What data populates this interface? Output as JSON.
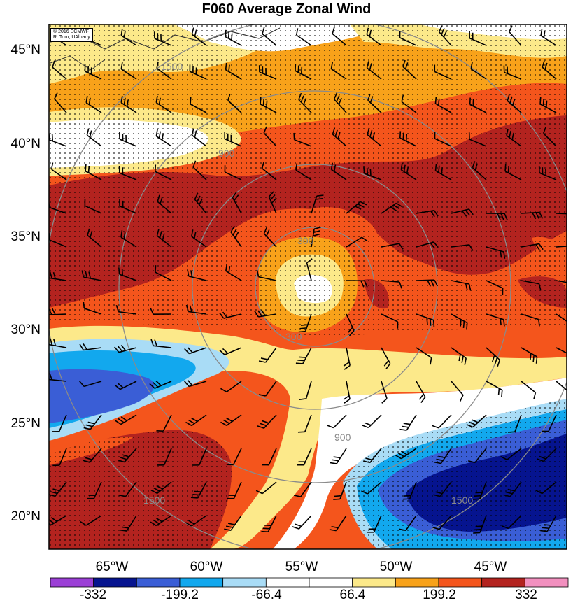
{
  "title": "F060 Average Zonal Wind",
  "credit": {
    "line1": "© 2016 ECMWF",
    "line2": "R. Torn, UAlbany"
  },
  "latitude_labels": [
    "45°N",
    "40°N",
    "35°N",
    "30°N",
    "25°N",
    "20°N"
  ],
  "longitude_labels": [
    "65°W",
    "60°W",
    "55°W",
    "50°W",
    "45°W"
  ],
  "colorbar": {
    "labels": [
      "-332",
      "-199.2",
      "-66.4",
      "66.4",
      "199.2",
      "332"
    ],
    "colors": [
      "#9b3fd6",
      "#06148f",
      "#3a5ed6",
      "#12a8ee",
      "#a9dcf6",
      "#ffffff",
      "#ffffff",
      "#fce98a",
      "#f8a21a",
      "#f4551c",
      "#b3231f",
      "#f290bf"
    ]
  },
  "range_rings": [
    "300",
    "900",
    "1500"
  ],
  "colors": {
    "ring": "#8a8a8a",
    "barb": "#000000",
    "coast": "#333333"
  }
}
